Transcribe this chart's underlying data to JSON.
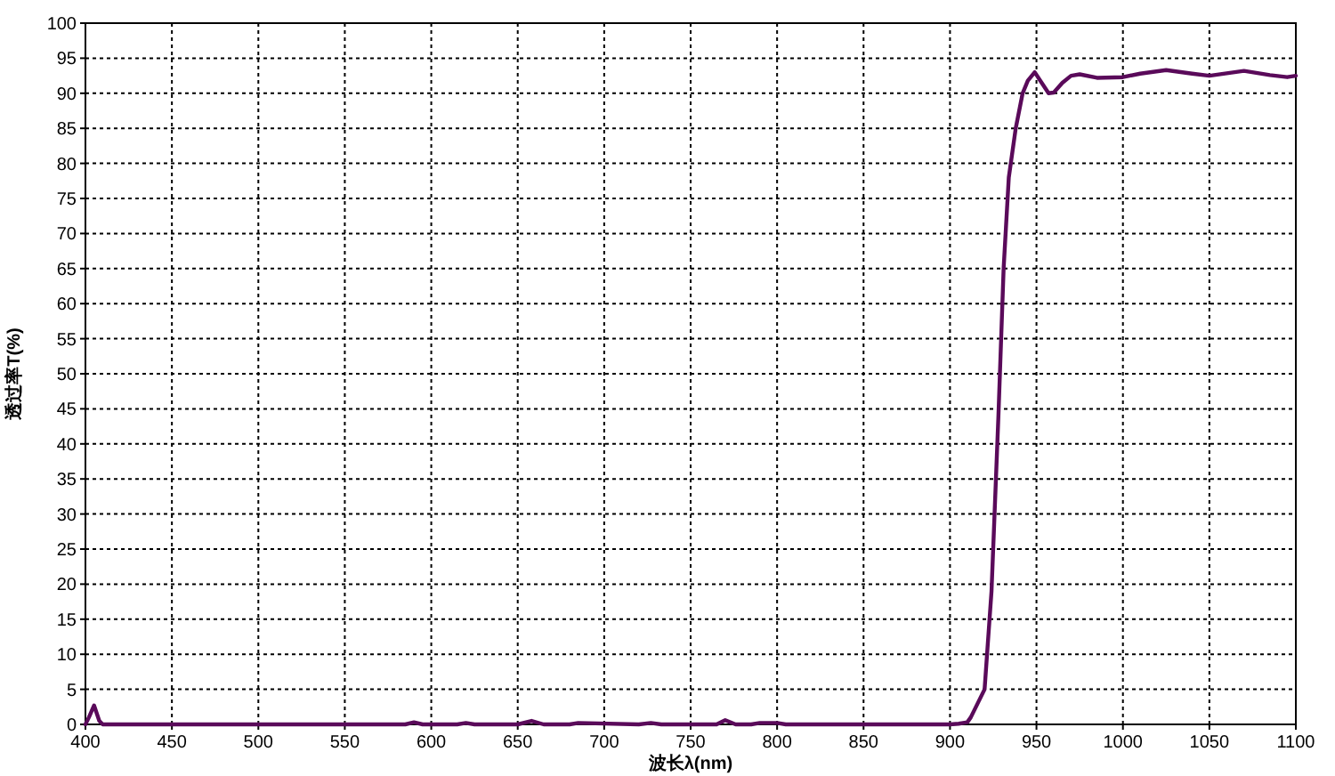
{
  "chart_data": {
    "type": "line",
    "xlabel": "波长λ(nm)",
    "ylabel": "透过率T(%)",
    "xlim": [
      400,
      1100
    ],
    "ylim": [
      0,
      100
    ],
    "xticks": [
      400,
      450,
      500,
      550,
      600,
      650,
      700,
      750,
      800,
      850,
      900,
      950,
      1000,
      1050,
      1100
    ],
    "yticks": [
      0,
      5,
      10,
      15,
      20,
      25,
      30,
      35,
      40,
      45,
      50,
      55,
      60,
      65,
      70,
      75,
      80,
      85,
      90,
      95,
      100
    ],
    "grid": true,
    "line_style": "solid",
    "series": [
      {
        "color": "#5a0a5a",
        "x": [
          400,
          402,
          405,
          408,
          410,
          450,
          500,
          585,
          590,
          595,
          615,
          620,
          625,
          650,
          658,
          665,
          680,
          685,
          720,
          727,
          733,
          765,
          770,
          776,
          785,
          790,
          800,
          805,
          850,
          900,
          905,
          910,
          912,
          916,
          920,
          924,
          928,
          931,
          934,
          938,
          942,
          945,
          949,
          953,
          957,
          960,
          965,
          970,
          975,
          985,
          1000,
          1010,
          1025,
          1040,
          1050,
          1070,
          1085,
          1095,
          1100
        ],
        "values": [
          0,
          1,
          2.7,
          0.5,
          0,
          0,
          0,
          0,
          0.3,
          0,
          0,
          0.2,
          0,
          0,
          0.5,
          0,
          0,
          0.2,
          0,
          0.2,
          0,
          0,
          0.6,
          0,
          0,
          0.2,
          0.2,
          0,
          0,
          0,
          0.1,
          0.3,
          1,
          3,
          5,
          19,
          44,
          65,
          78,
          85,
          90,
          91.8,
          93,
          91.5,
          90,
          90.1,
          91.5,
          92.5,
          92.7,
          92.2,
          92.3,
          92.8,
          93.3,
          92.8,
          92.5,
          93.2,
          92.6,
          92.3,
          92.5
        ]
      }
    ]
  }
}
